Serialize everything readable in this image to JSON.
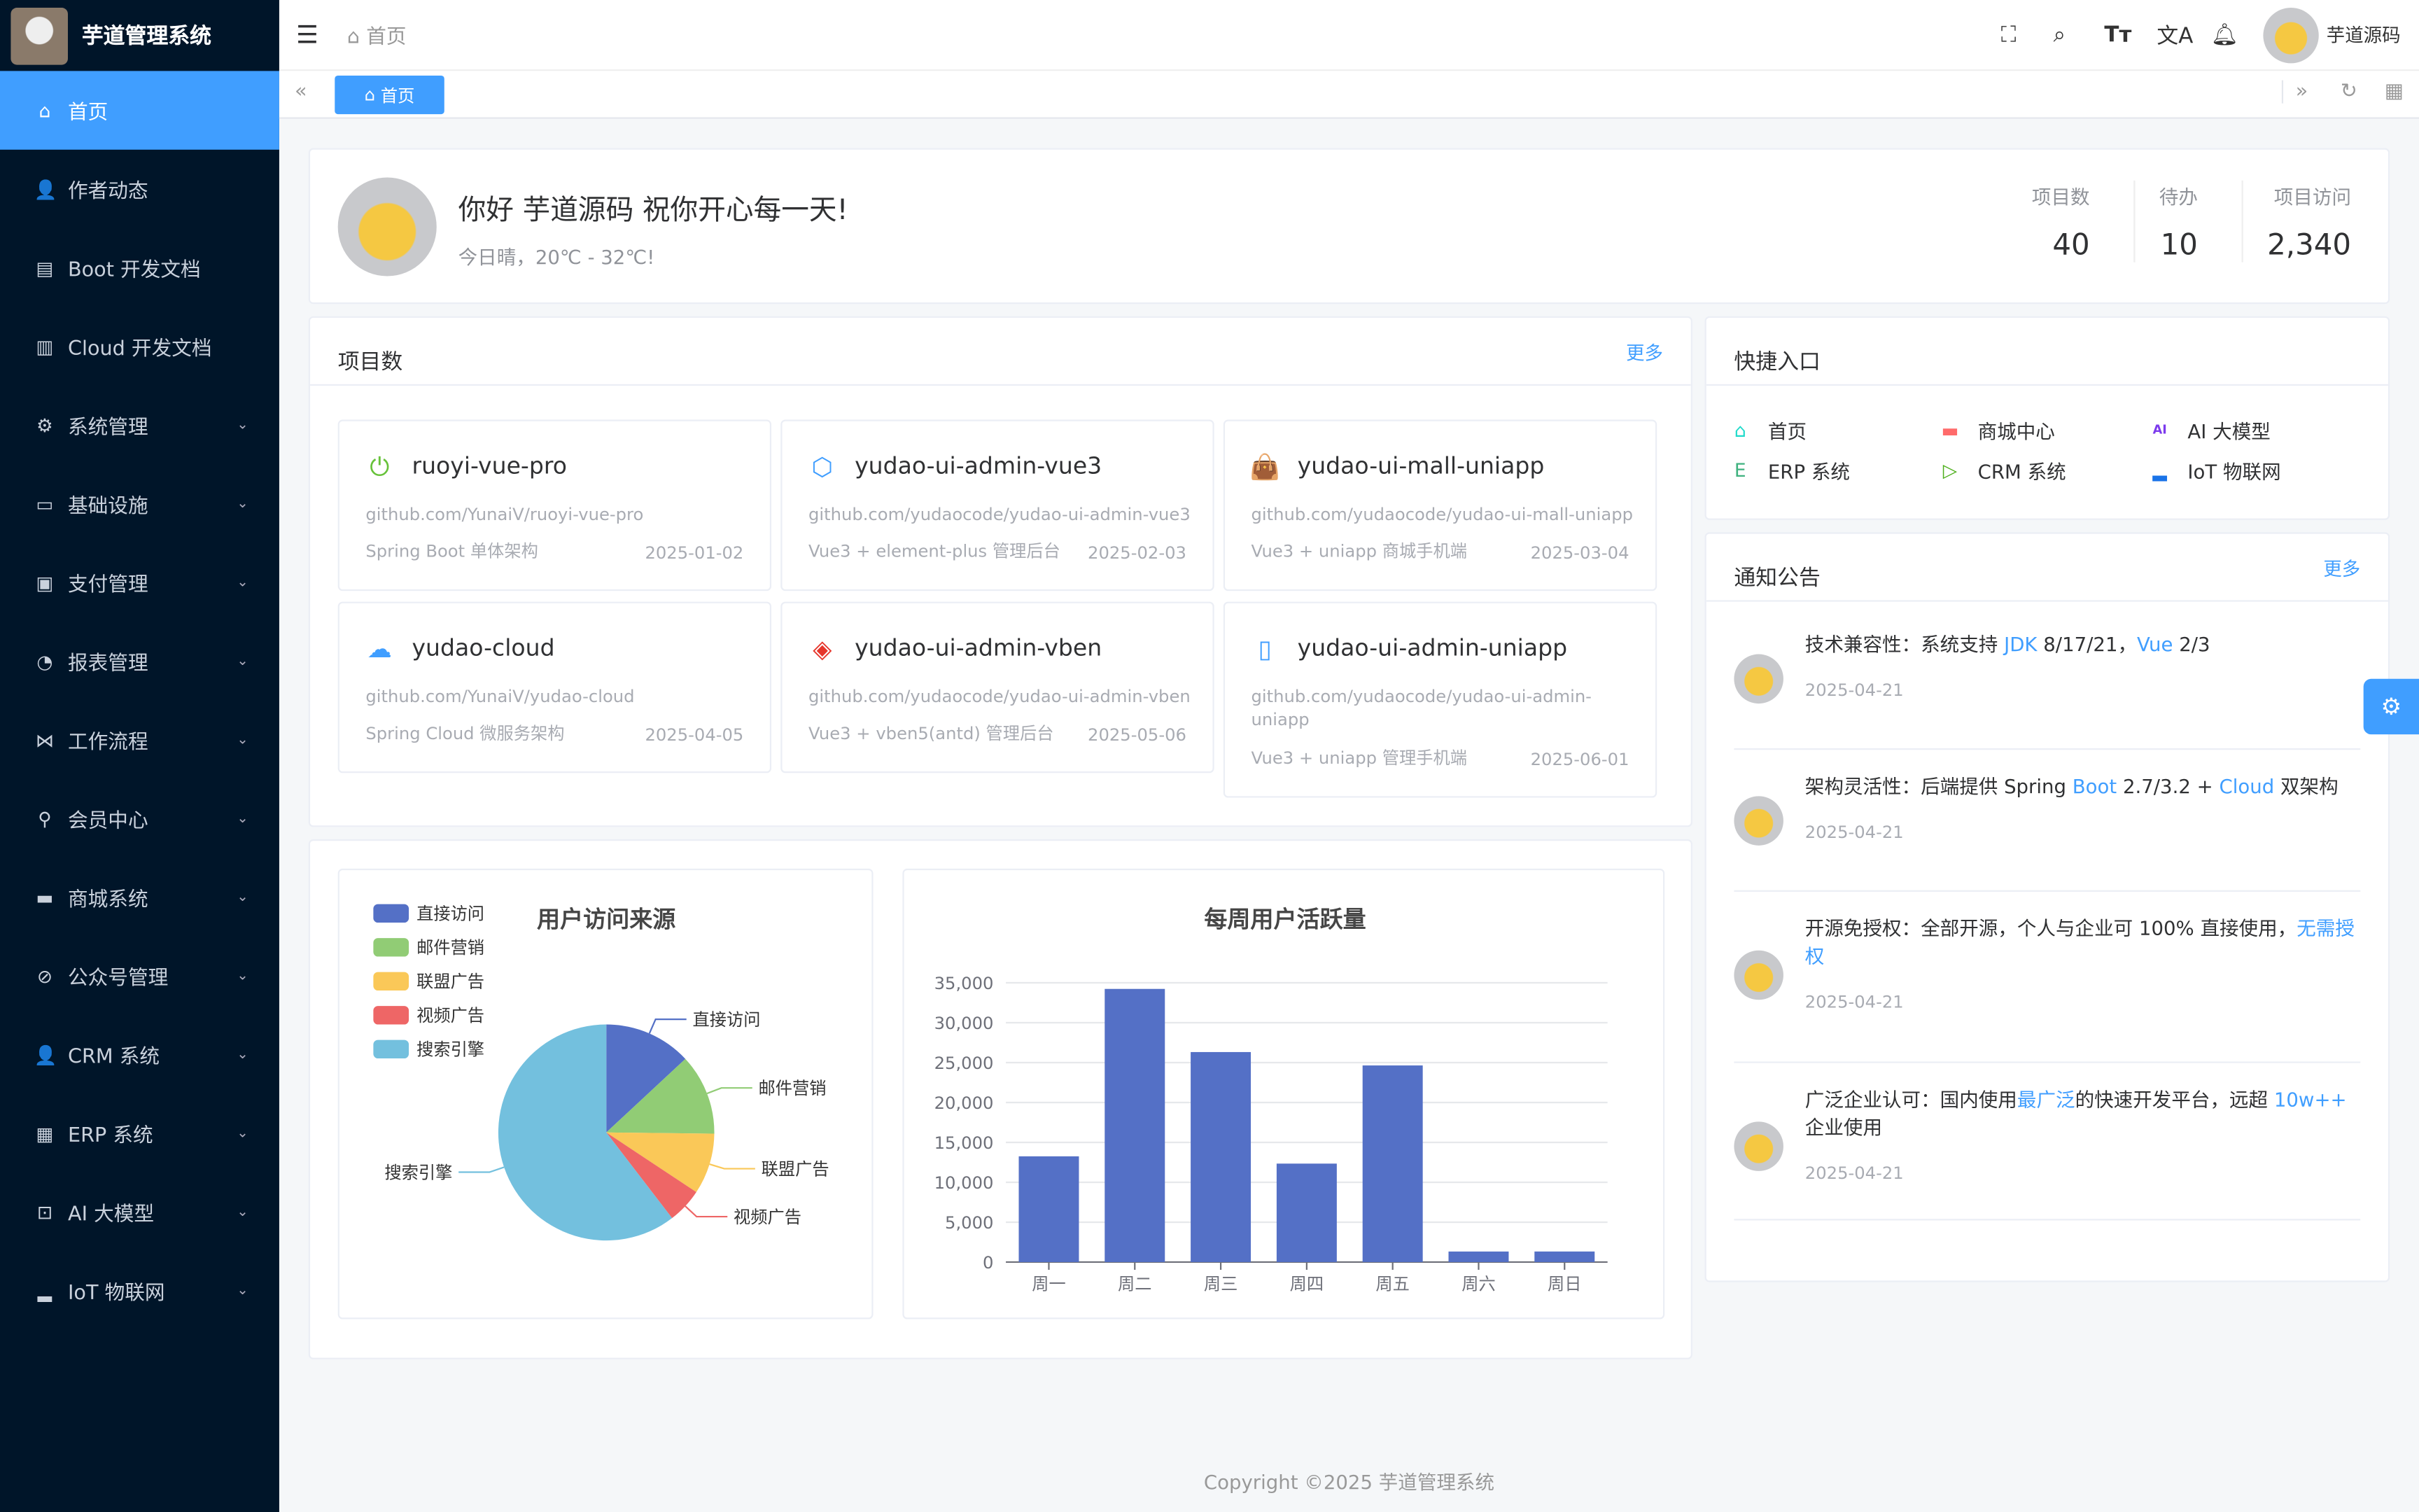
{
  "app": {
    "title": "芋道管理系统"
  },
  "sidebar": {
    "items": [
      {
        "label": "首页",
        "icon": "home-icon",
        "glyph": "⌂",
        "active": true
      },
      {
        "label": "作者动态",
        "icon": "user-icon",
        "glyph": "👤"
      },
      {
        "label": "Boot 开发文档",
        "icon": "document-icon",
        "glyph": "▤"
      },
      {
        "label": "Cloud 开发文档",
        "icon": "documents-icon",
        "glyph": "▥"
      },
      {
        "label": "系统管理",
        "icon": "gear-icon",
        "glyph": "⚙",
        "sub": true
      },
      {
        "label": "基础设施",
        "icon": "monitor-icon",
        "glyph": "▭",
        "sub": true
      },
      {
        "label": "支付管理",
        "icon": "payment-icon",
        "glyph": "▣",
        "sub": true
      },
      {
        "label": "报表管理",
        "icon": "pie-chart-icon",
        "glyph": "◔",
        "sub": true
      },
      {
        "label": "工作流程",
        "icon": "workflow-icon",
        "glyph": "⋈",
        "sub": true
      },
      {
        "label": "会员中心",
        "icon": "bicycle-icon",
        "glyph": "⚲",
        "sub": true
      },
      {
        "label": "商城系统",
        "icon": "shop-icon",
        "glyph": "▬",
        "sub": true
      },
      {
        "label": "公众号管理",
        "icon": "compass-icon",
        "glyph": "⊘",
        "sub": true
      },
      {
        "label": "CRM 系统",
        "icon": "user-icon",
        "glyph": "👤",
        "sub": true
      },
      {
        "label": "ERP 系统",
        "icon": "store-icon",
        "glyph": "▦",
        "sub": true
      },
      {
        "label": "AI 大模型",
        "icon": "ai-icon",
        "glyph": "⊡",
        "sub": true
      },
      {
        "label": "IoT 物联网",
        "icon": "car-icon",
        "glyph": "▂",
        "sub": true
      }
    ]
  },
  "header": {
    "breadcrumb": "首页",
    "username": "芋道源码"
  },
  "tags": {
    "active": "首页"
  },
  "welcome": {
    "greeting": "你好 芋道源码 祝你开心每一天!",
    "weather": "今日晴，20℃ - 32℃!",
    "stats": [
      {
        "label": "项目数",
        "value": "40"
      },
      {
        "label": "待办",
        "value": "10"
      },
      {
        "label": "项目访问",
        "value": "2,340"
      }
    ]
  },
  "projects": {
    "title": "项目数",
    "more": "更多",
    "items": [
      {
        "name": "ruoyi-vue-pro",
        "url": "github.com/YunaiV/ruoyi-vue-pro",
        "desc": "Spring Boot 单体架构",
        "date": "2025-01-02",
        "icon": "power-icon",
        "glyph": "⏻",
        "color": "#67c23a"
      },
      {
        "name": "yudao-ui-admin-vue3",
        "url": "github.com/yudaocode/yudao-ui-admin-vue3",
        "desc": "Vue3 + element-plus 管理后台",
        "date": "2025-02-03",
        "icon": "hexagon-icon",
        "glyph": "⬡",
        "color": "#409eff"
      },
      {
        "name": "yudao-ui-mall-uniapp",
        "url": "github.com/yudaocode/yudao-ui-mall-uniapp",
        "desc": "Vue3 + uniapp 商城手机端",
        "date": "2025-03-04",
        "icon": "shopping-bag-icon",
        "glyph": "👜",
        "color": "#f56c6c"
      },
      {
        "name": "yudao-cloud",
        "url": "github.com/YunaiV/yudao-cloud",
        "desc": "Spring Cloud 微服务架构",
        "date": "2025-04-05",
        "icon": "cloud-icon",
        "glyph": "☁",
        "color": "#409eff"
      },
      {
        "name": "yudao-ui-admin-vben",
        "url": "github.com/yudaocode/yudao-ui-admin-vben",
        "desc": "Vue3 + vben5(antd) 管理后台",
        "date": "2025-05-06",
        "icon": "diamond-icon",
        "glyph": "◈",
        "color": "#e6362c"
      },
      {
        "name": "yudao-ui-admin-uniapp",
        "url": "github.com/yudaocode/yudao-ui-admin-uniapp",
        "desc": "Vue3 + uniapp 管理手机端",
        "date": "2025-06-01",
        "icon": "phone-icon",
        "glyph": "▯",
        "color": "#409eff"
      }
    ]
  },
  "shortcuts": {
    "title": "快捷入口",
    "items": [
      {
        "label": "首页",
        "icon": "home-icon",
        "glyph": "⌂",
        "color": "#1fdaca"
      },
      {
        "label": "商城中心",
        "icon": "shop-icon",
        "glyph": "▬",
        "color": "#ff6b6b"
      },
      {
        "label": "AI 大模型",
        "icon": "ai-icon",
        "glyph": "AI",
        "color": "#7c3aed"
      },
      {
        "label": "ERP 系统",
        "icon": "erp-icon",
        "glyph": "E",
        "color": "#3fb27f"
      },
      {
        "label": "CRM 系统",
        "icon": "crm-icon",
        "glyph": "▷",
        "color": "#4daf1b"
      },
      {
        "label": "IoT 物联网",
        "icon": "car-icon",
        "glyph": "▂",
        "color": "#1a73e8"
      }
    ]
  },
  "notices": {
    "title": "通知公告",
    "more": "更多",
    "items": [
      {
        "parts": [
          {
            "t": "技术兼容性：系统支持 "
          },
          {
            "t": "JDK",
            "link": true
          },
          {
            "t": " 8/17/21，"
          },
          {
            "t": "Vue",
            "link": true
          },
          {
            "t": " 2/3"
          }
        ],
        "date": "2025-04-21"
      },
      {
        "parts": [
          {
            "t": "架构灵活性：后端提供 Spring "
          },
          {
            "t": "Boot",
            "link": true
          },
          {
            "t": " 2.7/3.2 + "
          },
          {
            "t": "Cloud",
            "link": true
          },
          {
            "t": " 双架构"
          }
        ],
        "date": "2025-04-21"
      },
      {
        "parts": [
          {
            "t": "开源免授权：全部开源，个人与企业可 100% 直接使用，"
          },
          {
            "t": "无需授权",
            "link": true
          }
        ],
        "date": "2025-04-21"
      },
      {
        "parts": [
          {
            "t": "广泛企业认可：国内使用"
          },
          {
            "t": "最广泛",
            "link": true
          },
          {
            "t": "的快速开发平台，远超 "
          },
          {
            "t": "10w++",
            "link": true
          },
          {
            "t": " 企业使用"
          }
        ],
        "date": "2025-04-21"
      }
    ]
  },
  "footer": {
    "copyright": "Copyright ©2025 芋道管理系统"
  },
  "chart_data": [
    {
      "type": "pie",
      "title": "用户访问来源",
      "legend": "top-left",
      "categories": [
        "直接访问",
        "邮件营销",
        "联盟广告",
        "视频广告",
        "搜索引擎"
      ],
      "values": [
        335,
        310,
        234,
        135,
        1548
      ],
      "colors": [
        "#5470c6",
        "#91cc75",
        "#fac858",
        "#ee6666",
        "#73c0de"
      ]
    },
    {
      "type": "bar",
      "title": "每周用户活跃量",
      "categories": [
        "周一",
        "周二",
        "周三",
        "周四",
        "周五",
        "周六",
        "周日"
      ],
      "values": [
        13253,
        34235,
        26321,
        12340,
        24643,
        1322,
        1324
      ],
      "yticks": [
        "0",
        "5,000",
        "10,000",
        "15,000",
        "20,000",
        "25,000",
        "30,000",
        "35,000"
      ],
      "ylim": [
        0,
        35000
      ],
      "grid": true,
      "color": "#5470c6"
    }
  ]
}
